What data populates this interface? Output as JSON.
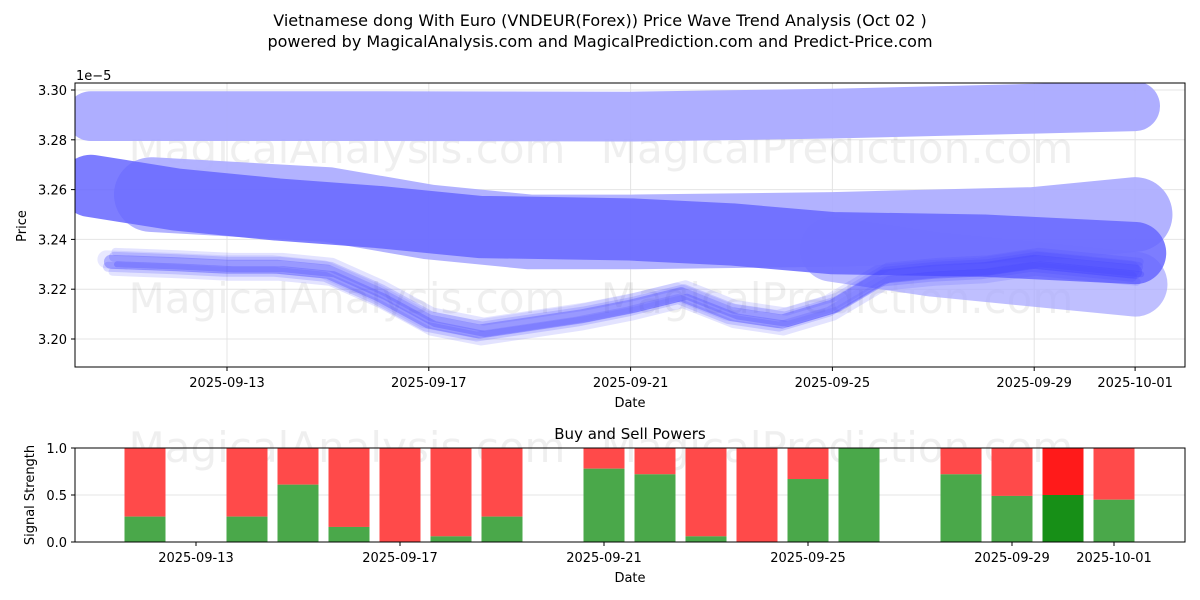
{
  "chart_data": [
    {
      "type": "area",
      "title_line1": "Vietnamese dong With Euro (VNDEUR(Forex)) Price Wave Trend Analysis (Oct 02 )",
      "title_line2": "powered by MagicalAnalysis.com and MagicalPrediction.com and Predict-Price.com",
      "xlabel": "Date",
      "ylabel": "Price",
      "y_multiplier": "1e−5",
      "ylim": [
        3.189,
        3.302
      ],
      "yticks": [
        "3.20",
        "3.22",
        "3.24",
        "3.26",
        "3.28",
        "3.30"
      ],
      "ytick_values": [
        3.2,
        3.22,
        3.24,
        3.26,
        3.28,
        3.3
      ],
      "xticks": [
        "2025-09-13",
        "2025-09-17",
        "2025-09-21",
        "2025-09-25",
        "2025-09-29",
        "2025-10-01"
      ],
      "xtick_day_offsets": [
        13,
        17,
        21,
        25,
        29,
        31
      ],
      "grid": true,
      "watermarks": [
        "MagicalAnalysis.com",
        "MagicalPrediction.com"
      ],
      "bands": [
        {
          "name": "upper-band",
          "color": "#aaaaff",
          "opacity": 0.95,
          "width_price": 0.02,
          "points": [
            [
              10.3,
              3.2895
            ],
            [
              16,
              3.2895
            ],
            [
              21,
              3.2893
            ],
            [
              25,
              3.2905
            ],
            [
              29,
              3.2925
            ],
            [
              31,
              3.2935
            ]
          ]
        },
        {
          "name": "middle-band",
          "color": "#aaaaff",
          "opacity": 0.9,
          "width_price": 0.03,
          "points": [
            [
              11.5,
              3.258
            ],
            [
              15,
              3.254
            ],
            [
              17,
              3.247
            ],
            [
              19,
              3.243
            ],
            [
              21,
              3.243
            ],
            [
              25,
              3.244
            ],
            [
              29,
              3.246
            ],
            [
              31,
              3.25
            ]
          ]
        },
        {
          "name": "lower-band",
          "color": "#aaaaff",
          "opacity": 0.75,
          "width_price": 0.026,
          "points": [
            [
              25,
              3.236
            ],
            [
              27,
              3.23
            ],
            [
              29,
              3.226
            ],
            [
              31,
              3.222
            ]
          ]
        },
        {
          "name": "trend-band",
          "color": "#6666ff",
          "opacity": 0.85,
          "width_price": 0.025,
          "points": [
            [
              10.3,
              3.2615
            ],
            [
              12,
              3.256
            ],
            [
              14,
              3.252
            ],
            [
              16,
              3.249
            ],
            [
              18,
              3.245
            ],
            [
              21,
              3.244
            ],
            [
              23,
              3.242
            ],
            [
              25,
              3.2385
            ],
            [
              28,
              3.2375
            ],
            [
              31,
              3.2345
            ]
          ]
        }
      ],
      "wave": {
        "color": "#4444ff",
        "x": [
          10.7,
          12,
          13,
          14,
          15,
          16,
          17,
          18,
          19,
          20,
          21,
          22,
          23,
          24,
          25,
          26,
          27,
          28,
          29,
          30,
          31
        ],
        "y": [
          3.231,
          3.23,
          3.229,
          3.229,
          3.227,
          3.218,
          3.207,
          3.203,
          3.206,
          3.209,
          3.213,
          3.218,
          3.21,
          3.207,
          3.213,
          3.225,
          3.227,
          3.228,
          3.231,
          3.229,
          3.227
        ]
      }
    },
    {
      "type": "bar",
      "title": "Buy and Sell Powers",
      "xlabel": "Date",
      "ylabel": "Signal Strength",
      "ylim": [
        0,
        1.0
      ],
      "yticks": [
        "0.0",
        "0.5",
        "1.0"
      ],
      "ytick_values": [
        0,
        0.5,
        1.0
      ],
      "xticks": [
        "2025-09-13",
        "2025-09-17",
        "2025-09-21",
        "2025-09-25",
        "2025-09-29",
        "2025-10-01"
      ],
      "xtick_day_offsets": [
        13,
        17,
        21,
        25,
        29,
        31
      ],
      "buy_color": "#4aa84a",
      "sell_color": "#ff4a4a",
      "highlight_buy_color": "#178f17",
      "highlight_sell_color": "#ff1a1a",
      "categories": [
        "2025-09-12",
        "2025-09-14",
        "2025-09-15",
        "2025-09-16",
        "2025-09-17",
        "2025-09-18",
        "2025-09-19",
        "2025-09-21",
        "2025-09-22",
        "2025-09-23",
        "2025-09-24",
        "2025-09-25",
        "2025-09-26",
        "2025-09-28",
        "2025-09-29",
        "2025-09-30",
        "2025-10-01"
      ],
      "day_offsets": [
        12,
        14,
        15,
        16,
        17,
        18,
        19,
        21,
        22,
        23,
        24,
        25,
        26,
        28,
        29,
        30,
        31
      ],
      "buy": [
        0.27,
        0.27,
        0.61,
        0.16,
        0.0,
        0.06,
        0.27,
        0.78,
        0.72,
        0.06,
        0.0,
        0.67,
        1.0,
        0.72,
        0.49,
        0.5,
        0.45
      ],
      "highlight": [
        false,
        false,
        false,
        false,
        false,
        false,
        false,
        false,
        false,
        false,
        false,
        false,
        false,
        false,
        false,
        true,
        false
      ]
    }
  ]
}
